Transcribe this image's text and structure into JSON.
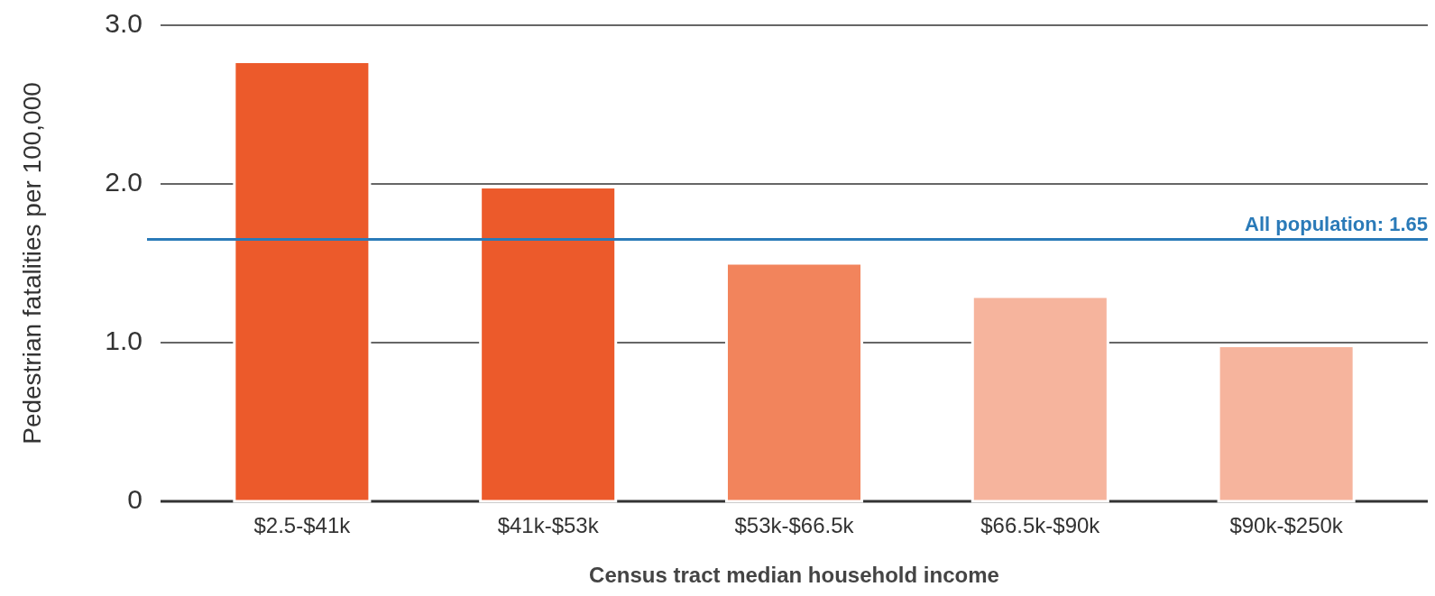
{
  "chart_data": {
    "type": "bar",
    "xlabel": "Census tract median household income",
    "ylabel": "Pedestrian fatalities per 100,000",
    "categories": [
      "$2.5-$41k",
      "$41k-$53k",
      "$53k-$66.5k",
      "$66.5k-$90k",
      "$90k-$250k"
    ],
    "values": [
      2.77,
      1.98,
      1.5,
      1.29,
      0.98
    ],
    "colors": [
      "#ec5a2b",
      "#ec5a2b",
      "#f2845c",
      "#f6b49d",
      "#f6b49d"
    ],
    "ylim": [
      0,
      3
    ],
    "yticks": [
      {
        "value": 0,
        "label": "0"
      },
      {
        "value": 1,
        "label": "1.0"
      },
      {
        "value": 2,
        "label": "2.0"
      },
      {
        "value": 3,
        "label": "3.0"
      }
    ],
    "grid": "y",
    "ref_lines": [
      {
        "axis": "y",
        "value": 1.65,
        "label": "All population: 1.65",
        "color": "#2a7ab8"
      }
    ]
  }
}
